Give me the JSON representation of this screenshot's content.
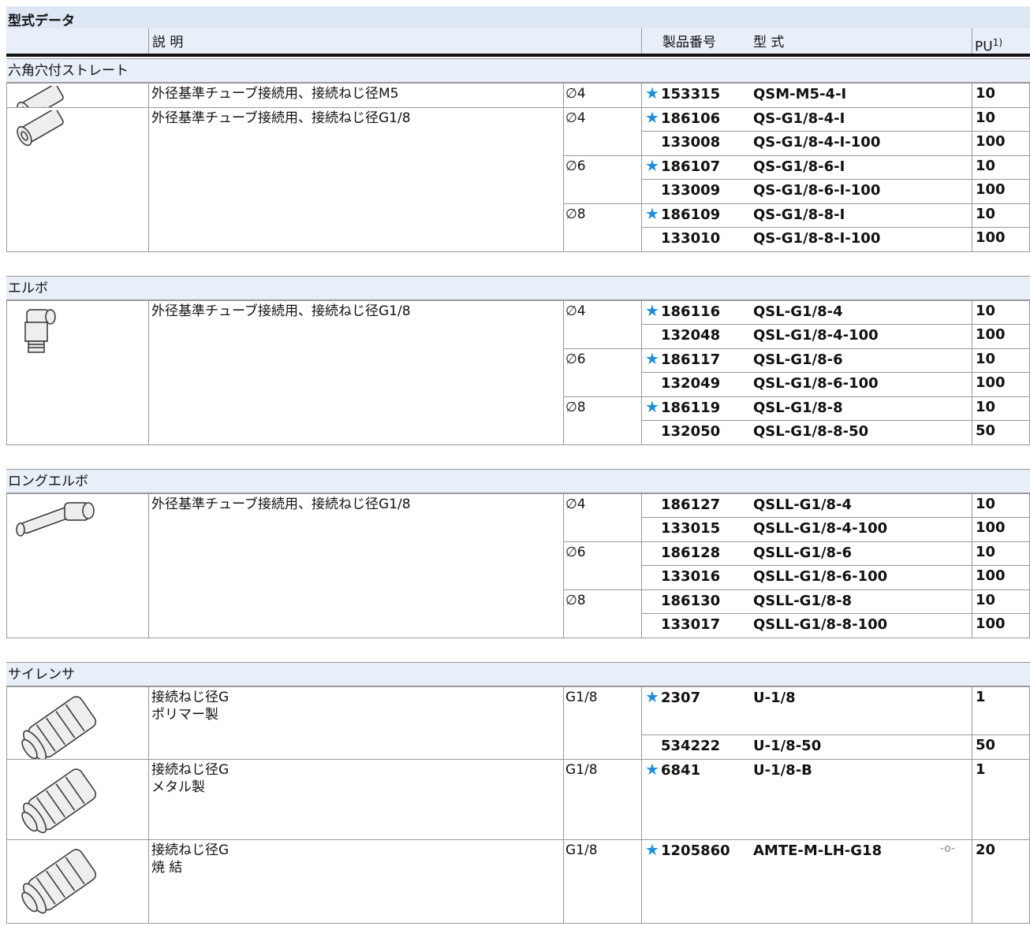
{
  "title": "型式データ",
  "header": {
    "description": "説 明",
    "part_number": "製品番号",
    "type": "型 式",
    "pu": "PU",
    "pu_note": "1)"
  },
  "sections": [
    {
      "title": "六角穴付ストレート",
      "items": [
        {
          "description": [
            "外径基準チューブ接続用、接続ねじ径M5"
          ],
          "sizes": [
            {
              "size": "∅4",
              "rows": [
                {
                  "recommended": true,
                  "part_number": "153315",
                  "type": "QSM-M5-4-I",
                  "pu": 10
                }
              ]
            }
          ]
        },
        {
          "description": [
            "外径基準チューブ接続用、接続ねじ径G1/8"
          ],
          "sizes": [
            {
              "size": "∅4",
              "rows": [
                {
                  "recommended": true,
                  "part_number": "186106",
                  "type": "QS-G1/8-4-I",
                  "pu": 10
                },
                {
                  "recommended": false,
                  "part_number": "133008",
                  "type": "QS-G1/8-4-I-100",
                  "pu": 100
                }
              ]
            },
            {
              "size": "∅6",
              "rows": [
                {
                  "recommended": true,
                  "part_number": "186107",
                  "type": "QS-G1/8-6-I",
                  "pu": 10
                },
                {
                  "recommended": false,
                  "part_number": "133009",
                  "type": "QS-G1/8-6-I-100",
                  "pu": 100
                }
              ]
            },
            {
              "size": "∅8",
              "rows": [
                {
                  "recommended": true,
                  "part_number": "186109",
                  "type": "QS-G1/8-8-I",
                  "pu": 10
                },
                {
                  "recommended": false,
                  "part_number": "133010",
                  "type": "QS-G1/8-8-I-100",
                  "pu": 100
                }
              ]
            }
          ]
        }
      ]
    },
    {
      "title": "エルボ",
      "items": [
        {
          "description": [
            "外径基準チューブ接続用、接続ねじ径G1/8"
          ],
          "sizes": [
            {
              "size": "∅4",
              "rows": [
                {
                  "recommended": true,
                  "part_number": "186116",
                  "type": "QSL-G1/8-4",
                  "pu": 10
                },
                {
                  "recommended": false,
                  "part_number": "132048",
                  "type": "QSL-G1/8-4-100",
                  "pu": 100
                }
              ]
            },
            {
              "size": "∅6",
              "rows": [
                {
                  "recommended": true,
                  "part_number": "186117",
                  "type": "QSL-G1/8-6",
                  "pu": 10
                },
                {
                  "recommended": false,
                  "part_number": "132049",
                  "type": "QSL-G1/8-6-100",
                  "pu": 100
                }
              ]
            },
            {
              "size": "∅8",
              "rows": [
                {
                  "recommended": true,
                  "part_number": "186119",
                  "type": "QSL-G1/8-8",
                  "pu": 10
                },
                {
                  "recommended": false,
                  "part_number": "132050",
                  "type": "QSL-G1/8-8-50",
                  "pu": 50
                }
              ]
            }
          ]
        }
      ]
    },
    {
      "title": "ロングエルボ",
      "items": [
        {
          "description": [
            "外径基準チューブ接続用、接続ねじ径G1/8"
          ],
          "sizes": [
            {
              "size": "∅4",
              "rows": [
                {
                  "recommended": false,
                  "part_number": "186127",
                  "type": "QSLL-G1/8-4",
                  "pu": 10
                },
                {
                  "recommended": false,
                  "part_number": "133015",
                  "type": "QSLL-G1/8-4-100",
                  "pu": 100
                }
              ]
            },
            {
              "size": "∅6",
              "rows": [
                {
                  "recommended": false,
                  "part_number": "186128",
                  "type": "QSLL-G1/8-6",
                  "pu": 10
                },
                {
                  "recommended": false,
                  "part_number": "133016",
                  "type": "QSLL-G1/8-6-100",
                  "pu": 100
                }
              ]
            },
            {
              "size": "∅8",
              "rows": [
                {
                  "recommended": false,
                  "part_number": "186130",
                  "type": "QSLL-G1/8-8",
                  "pu": 10
                },
                {
                  "recommended": false,
                  "part_number": "133017",
                  "type": "QSLL-G1/8-8-100",
                  "pu": 100
                }
              ]
            }
          ]
        }
      ]
    },
    {
      "title": "サイレンサ",
      "items": [
        {
          "description": [
            "接続ねじ径G",
            "ポリマー製"
          ],
          "sizes": [
            {
              "size": "G1/8",
              "rows": [
                {
                  "recommended": true,
                  "part_number": "2307",
                  "type": "U-1/8",
                  "pu": 1
                },
                {
                  "recommended": false,
                  "part_number": "534222",
                  "type": "U-1/8-50",
                  "pu": 50
                }
              ]
            }
          ]
        },
        {
          "description": [
            "接続ねじ径G",
            "メタル製"
          ],
          "sizes": [
            {
              "size": "G1/8",
              "rows": [
                {
                  "recommended": true,
                  "part_number": "6841",
                  "type": "U-1/8-B",
                  "pu": 1
                }
              ]
            }
          ]
        },
        {
          "description": [
            "接続ねじ径G",
            "焼 結"
          ],
          "sizes": [
            {
              "size": "G1/8",
              "rows": [
                {
                  "recommended": true,
                  "part_number": "1205860",
                  "type": "AMTE-M-LH-G18",
                  "pu": 20,
                  "accessory_icon": true
                }
              ]
            }
          ]
        }
      ]
    }
  ]
}
